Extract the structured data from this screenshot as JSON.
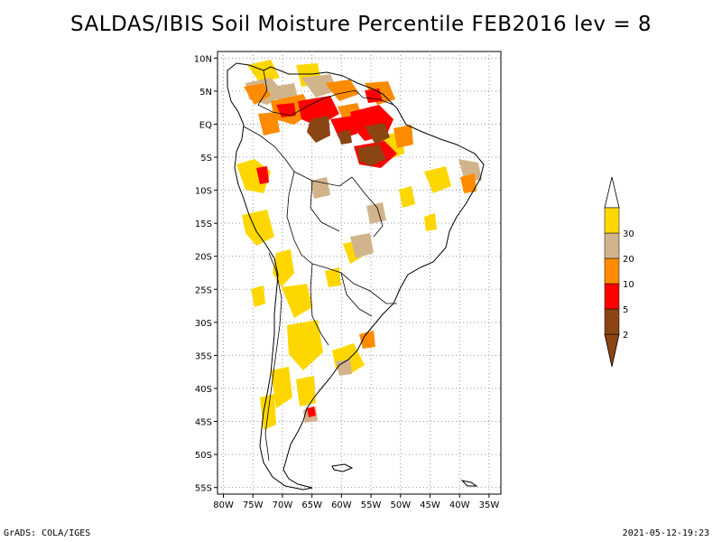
{
  "title": "SALDAS/IBIS Soil Moisture Percentile FEB2016 lev = 8",
  "footer": {
    "left": "GrADS: COLA/IGES",
    "right": "2021-05-12-19:23"
  },
  "map": {
    "lat_ticks": [
      "10N",
      "5N",
      "EQ",
      "5S",
      "10S",
      "15S",
      "20S",
      "25S",
      "30S",
      "35S",
      "40S",
      "45S",
      "50S",
      "55S"
    ],
    "lon_ticks": [
      "80W",
      "75W",
      "70W",
      "65W",
      "60W",
      "55W",
      "50W",
      "45W",
      "40W",
      "35W"
    ],
    "lat_range": [
      -56,
      11
    ],
    "lon_range": [
      -81,
      -33
    ],
    "grid": true,
    "projection": "lat-lon"
  },
  "legend": {
    "labels": [
      "2",
      "5",
      "10",
      "20",
      "30"
    ],
    "colors": [
      "#8b4513",
      "#ff0000",
      "#ff8c00",
      "#d2b48c",
      "#ffd700"
    ],
    "top_arrow_color": "#ffffff",
    "bottom_arrow_color": "#8b4513"
  },
  "colors": {
    "coast": "#000000",
    "grid": "#999999"
  }
}
